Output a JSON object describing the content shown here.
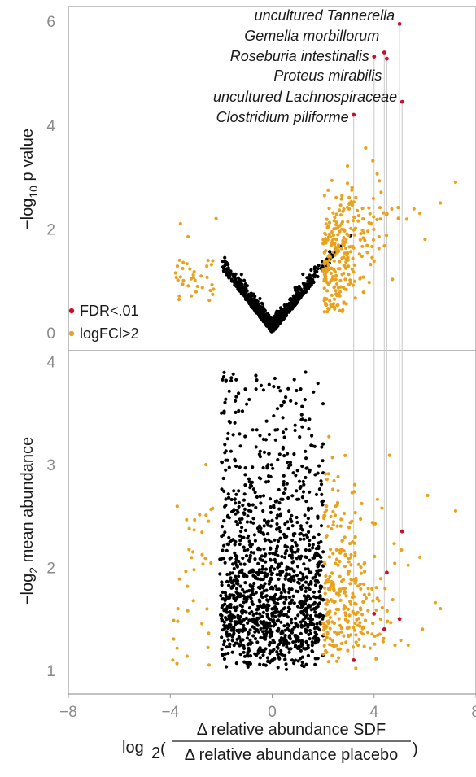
{
  "chart_data": [
    {
      "type": "scatter",
      "panel": "top",
      "ylabel_parts": [
        "−log",
        "10",
        " p value"
      ],
      "ylim": [
        0,
        6.3
      ],
      "yticks": [
        0,
        2,
        4,
        6
      ],
      "xlim": [
        -8,
        8
      ],
      "legend": {
        "placement": "bottom-left",
        "entries": [
          {
            "label": "FDR<.01",
            "color": "#c8102e"
          },
          {
            "label": "logFCl>2",
            "color": "#e8a21d"
          }
        ]
      },
      "annotations": [
        {
          "label": "uncultured Tannerella",
          "x": 5.0,
          "y": 5.95
        },
        {
          "label": "Gemella morbillorum",
          "x": 4.4,
          "y": 5.4
        },
        {
          "label": "Roseburia intestinalis",
          "x": 4.0,
          "y": 5.32
        },
        {
          "label": "Proteus mirabilis",
          "x": 4.5,
          "y": 5.28
        },
        {
          "label": "uncultured Lachnospiraceae",
          "x": 5.1,
          "y": 4.45
        },
        {
          "label": "Clostridium piliforme",
          "x": 3.2,
          "y": 4.2
        }
      ],
      "series": [
        {
          "name": "FDR<.01",
          "color": "#c8102e",
          "points": [
            [
              5.0,
              5.95
            ],
            [
              4.4,
              5.4
            ],
            [
              4.0,
              5.32
            ],
            [
              4.5,
              5.28
            ],
            [
              5.1,
              4.45
            ],
            [
              3.2,
              4.2
            ]
          ]
        }
      ]
    },
    {
      "type": "scatter",
      "panel": "bottom",
      "ylabel_parts": [
        "−log",
        "2",
        " mean abundance"
      ],
      "ylim": [
        0.8,
        4.05
      ],
      "yticks": [
        1,
        2,
        3,
        4
      ],
      "xlim": [
        -8,
        8
      ],
      "xticks": [
        -8,
        -4,
        0,
        4,
        8
      ],
      "xtick_labels": [
        "−8",
        "−4",
        "0",
        "4",
        "8"
      ],
      "xlabel": {
        "prefix": "log",
        "sub": "2",
        "numerator": "Δ relative abundance SDF",
        "denominator": "Δ relative abundance placebo"
      },
      "series": [
        {
          "name": "FDR<.01",
          "color": "#c8102e",
          "points": [
            [
              5.0,
              1.5
            ],
            [
              4.4,
              1.4
            ],
            [
              4.0,
              1.55
            ],
            [
              4.5,
              1.95
            ],
            [
              5.1,
              2.35
            ],
            [
              3.2,
              1.1
            ]
          ]
        }
      ]
    }
  ]
}
